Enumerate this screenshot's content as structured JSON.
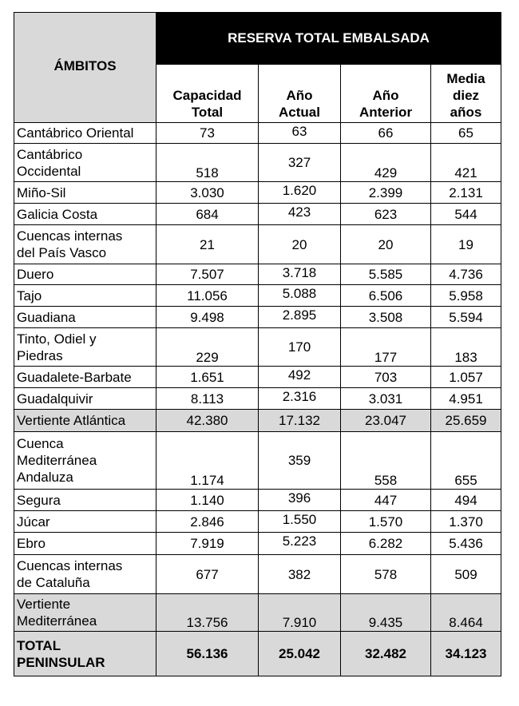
{
  "table": {
    "title": "RESERVA TOTAL EMBALSADA",
    "row_header": "ÁMBITOS",
    "columns": [
      "Capacidad Total",
      "Año Actual",
      "Año Anterior",
      "Media diez años"
    ],
    "column_lines": [
      [
        "Capacidad",
        "Total"
      ],
      [
        "Año",
        "Actual"
      ],
      [
        "Año",
        "Anterior"
      ],
      [
        "Media",
        "diez",
        "años"
      ]
    ],
    "rows": [
      {
        "lines": [
          "Cantábrico Oriental"
        ],
        "values": [
          "73",
          "63",
          "66",
          "65"
        ],
        "style": "normal",
        "valign": [
          "mid",
          "top",
          "mid",
          "mid"
        ],
        "height": 26
      },
      {
        "lines": [
          "Cantábrico",
          "Occidental"
        ],
        "values": [
          "518",
          "327",
          "429",
          "421"
        ],
        "style": "normal",
        "valign": [
          "bot",
          "mid",
          "bot",
          "bot"
        ],
        "height": 48
      },
      {
        "lines": [
          "Miño-Sil"
        ],
        "values": [
          "3.030",
          "1.620",
          "2.399",
          "2.131"
        ],
        "style": "normal",
        "valign": [
          "mid",
          "top",
          "mid",
          "mid"
        ],
        "height": 27
      },
      {
        "lines": [
          "Galicia Costa"
        ],
        "values": [
          "684",
          "423",
          "623",
          "544"
        ],
        "style": "normal",
        "valign": [
          "mid",
          "top",
          "mid",
          "mid"
        ],
        "height": 27
      },
      {
        "lines": [
          "Cuencas internas",
          "del País Vasco"
        ],
        "values": [
          "21",
          "20",
          "20",
          "19"
        ],
        "style": "normal",
        "valign": [
          "mid",
          "mid",
          "mid",
          "mid"
        ],
        "height": 49
      },
      {
        "lines": [
          "Duero"
        ],
        "values": [
          "7.507",
          "3.718",
          "5.585",
          "4.736"
        ],
        "style": "normal",
        "valign": [
          "mid",
          "top",
          "mid",
          "mid"
        ],
        "height": 26
      },
      {
        "lines": [
          "Tajo"
        ],
        "values": [
          "11.056",
          "5.088",
          "6.506",
          "5.958"
        ],
        "style": "normal",
        "valign": [
          "mid",
          "top",
          "mid",
          "mid"
        ],
        "height": 27
      },
      {
        "lines": [
          "Guadiana"
        ],
        "values": [
          "9.498",
          "2.895",
          "3.508",
          "5.594"
        ],
        "style": "normal",
        "valign": [
          "mid",
          "top",
          "mid",
          "mid"
        ],
        "height": 27
      },
      {
        "lines": [
          "Tinto, Odiel y",
          "Piedras"
        ],
        "values": [
          "229",
          "170",
          "177",
          "183"
        ],
        "style": "normal",
        "valign": [
          "bot",
          "mid",
          "bot",
          "bot"
        ],
        "height": 48
      },
      {
        "lines": [
          "Guadalete-Barbate"
        ],
        "values": [
          "1.651",
          "492",
          "703",
          "1.057"
        ],
        "style": "normal",
        "valign": [
          "mid",
          "top",
          "mid",
          "mid"
        ],
        "height": 27
      },
      {
        "lines": [
          "Guadalquivir"
        ],
        "values": [
          "8.113",
          "2.316",
          "3.031",
          "4.951"
        ],
        "style": "normal",
        "valign": [
          "mid",
          "top",
          "mid",
          "mid"
        ],
        "height": 27
      },
      {
        "lines": [
          "Vertiente Atlántica"
        ],
        "values": [
          "42.380",
          "17.132",
          "23.047",
          "25.659"
        ],
        "style": "shade",
        "valign": [
          "mid",
          "mid",
          "mid",
          "mid"
        ],
        "height": 28
      },
      {
        "lines": [
          "Cuenca",
          "Mediterránea",
          "Andaluza"
        ],
        "values": [
          "1.174",
          "359",
          "558",
          "655"
        ],
        "style": "normal",
        "valign": [
          "bot",
          "mid",
          "bot",
          "bot"
        ],
        "height": 72
      },
      {
        "lines": [
          "Segura"
        ],
        "values": [
          "1.140",
          "396",
          "447",
          "494"
        ],
        "style": "normal",
        "valign": [
          "mid",
          "top",
          "mid",
          "mid"
        ],
        "height": 27
      },
      {
        "lines": [
          "Júcar"
        ],
        "values": [
          "2.846",
          "1.550",
          "1.570",
          "1.370"
        ],
        "style": "normal",
        "valign": [
          "mid",
          "top",
          "mid",
          "mid"
        ],
        "height": 27
      },
      {
        "lines": [
          "Ebro"
        ],
        "values": [
          "7.919",
          "5.223",
          "6.282",
          "5.436"
        ],
        "style": "normal",
        "valign": [
          "mid",
          "top",
          "mid",
          "mid"
        ],
        "height": 28
      },
      {
        "lines": [
          "Cuencas internas",
          "de Cataluña"
        ],
        "values": [
          "677",
          "382",
          "578",
          "509"
        ],
        "style": "normal",
        "valign": [
          "mid",
          "mid",
          "mid",
          "mid"
        ],
        "height": 49
      },
      {
        "lines": [
          "Vertiente",
          "Mediterránea"
        ],
        "values": [
          "13.756",
          "7.910",
          "9.435",
          "8.464"
        ],
        "style": "shade",
        "valign": [
          "bot",
          "bot",
          "bot",
          "bot"
        ],
        "height": 47
      },
      {
        "lines": [
          "TOTAL",
          "PENINSULAR"
        ],
        "values": [
          "56.136",
          "25.042",
          "32.482",
          "34.123"
        ],
        "style": "total",
        "valign": [
          "mid",
          "mid",
          "mid",
          "mid"
        ],
        "height": 56
      }
    ]
  }
}
